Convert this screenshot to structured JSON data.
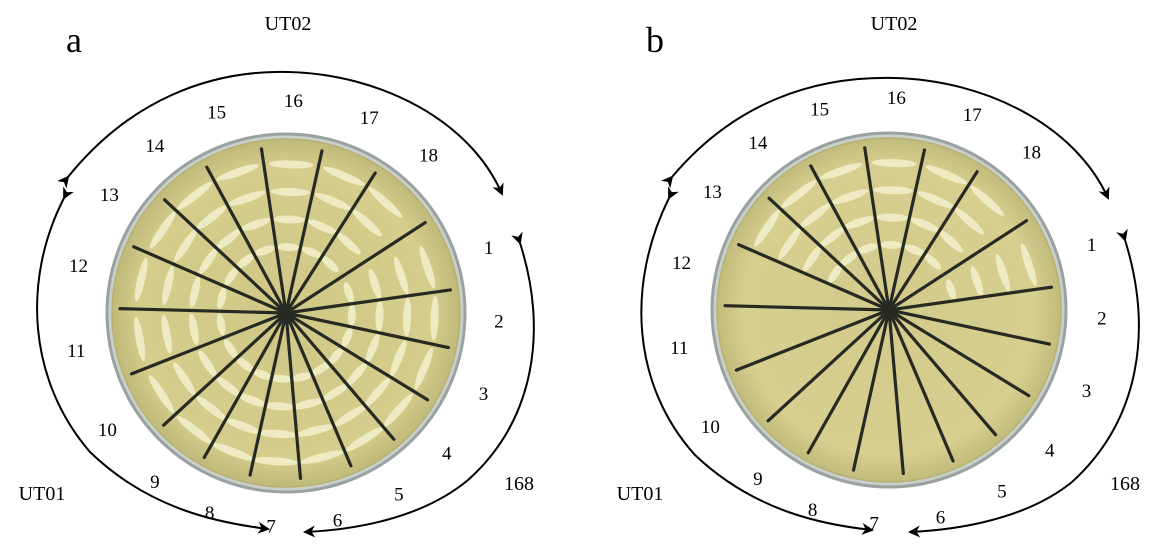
{
  "colors": {
    "agar": "#d3cc8a",
    "agar_edge": "#b9b173",
    "dish_rim": "#9aa2a0",
    "growth": "#f1eec8",
    "marker": "#262a22",
    "background": "#ffffff"
  },
  "panels": [
    {
      "letter": "a",
      "labels": {
        "top": "UT02",
        "left": "UT01",
        "right": "168"
      },
      "numbers": [
        "1",
        "2",
        "3",
        "4",
        "5",
        "6",
        "7",
        "8",
        "9",
        "10",
        "11",
        "12",
        "13",
        "14",
        "15",
        "16",
        "17",
        "18"
      ],
      "growth_sectors": [
        "1",
        "2",
        "3",
        "4",
        "5",
        "6",
        "7",
        "8",
        "9",
        "10",
        "11",
        "12",
        "13",
        "14",
        "15",
        "16",
        "17",
        "18"
      ]
    },
    {
      "letter": "b",
      "labels": {
        "top": "UT02",
        "left": "UT01",
        "right": "168"
      },
      "numbers": [
        "1",
        "2",
        "3",
        "4",
        "5",
        "6",
        "7",
        "8",
        "9",
        "10",
        "11",
        "12",
        "13",
        "14",
        "15",
        "16",
        "17",
        "18"
      ],
      "growth_sectors": [
        "13",
        "14",
        "15",
        "16",
        "17",
        "18",
        "1"
      ]
    }
  ]
}
